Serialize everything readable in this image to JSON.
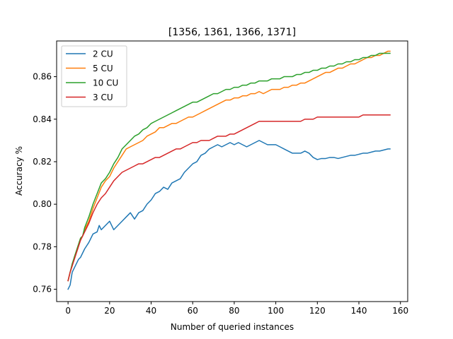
{
  "chart_data": {
    "type": "line",
    "title": "[1356, 1361, 1366, 1371]",
    "xlabel": "Number of queried instances",
    "ylabel": "Accuracy %",
    "xlim": [
      -5.5,
      163.5
    ],
    "ylim": [
      0.7542,
      0.8768
    ],
    "xticks": [
      0,
      20,
      40,
      60,
      80,
      100,
      120,
      140,
      160
    ],
    "xtick_labels": [
      "0",
      "20",
      "40",
      "60",
      "80",
      "100",
      "120",
      "140",
      "160"
    ],
    "yticks": [
      0.76,
      0.78,
      0.8,
      0.82,
      0.84,
      0.86
    ],
    "ytick_labels": [
      "0.76",
      "0.78",
      "0.80",
      "0.82",
      "0.84",
      "0.86"
    ],
    "grid": false,
    "legend_position": "top-left",
    "series": [
      {
        "name": "2 CU",
        "color": "#1f77b4",
        "x": [
          0,
          1,
          2,
          3,
          4,
          5,
          6,
          7,
          8,
          10,
          12,
          14,
          15,
          16,
          18,
          20,
          22,
          24,
          26,
          28,
          30,
          32,
          34,
          36,
          38,
          40,
          42,
          44,
          46,
          48,
          50,
          52,
          54,
          56,
          58,
          60,
          62,
          64,
          66,
          68,
          70,
          72,
          74,
          76,
          78,
          80,
          82,
          84,
          86,
          88,
          90,
          92,
          94,
          96,
          98,
          100,
          102,
          104,
          106,
          108,
          110,
          112,
          114,
          116,
          118,
          120,
          122,
          124,
          126,
          128,
          130,
          132,
          134,
          136,
          138,
          140,
          142,
          144,
          146,
          148,
          150,
          152,
          154,
          155
        ],
        "y": [
          0.76,
          0.762,
          0.768,
          0.77,
          0.772,
          0.774,
          0.775,
          0.777,
          0.779,
          0.782,
          0.786,
          0.787,
          0.79,
          0.788,
          0.79,
          0.792,
          0.788,
          0.79,
          0.792,
          0.794,
          0.796,
          0.793,
          0.796,
          0.797,
          0.8,
          0.802,
          0.805,
          0.806,
          0.808,
          0.807,
          0.81,
          0.811,
          0.812,
          0.815,
          0.817,
          0.819,
          0.82,
          0.823,
          0.824,
          0.826,
          0.827,
          0.828,
          0.827,
          0.828,
          0.829,
          0.828,
          0.829,
          0.828,
          0.827,
          0.828,
          0.829,
          0.83,
          0.829,
          0.828,
          0.828,
          0.828,
          0.827,
          0.826,
          0.825,
          0.824,
          0.824,
          0.824,
          0.825,
          0.824,
          0.822,
          0.821,
          0.8215,
          0.8215,
          0.822,
          0.822,
          0.8215,
          0.822,
          0.8225,
          0.823,
          0.823,
          0.8235,
          0.824,
          0.824,
          0.8245,
          0.825,
          0.825,
          0.8255,
          0.826,
          0.826
        ]
      },
      {
        "name": "5 CU",
        "color": "#ff7f0e",
        "x": [
          0,
          1,
          2,
          3,
          4,
          5,
          6,
          7,
          8,
          10,
          12,
          14,
          16,
          18,
          20,
          22,
          24,
          26,
          28,
          30,
          32,
          34,
          36,
          38,
          40,
          42,
          44,
          46,
          48,
          50,
          52,
          54,
          56,
          58,
          60,
          62,
          64,
          66,
          68,
          70,
          72,
          74,
          76,
          78,
          80,
          82,
          84,
          86,
          88,
          90,
          92,
          94,
          96,
          98,
          100,
          102,
          104,
          106,
          108,
          110,
          112,
          114,
          116,
          118,
          120,
          122,
          124,
          126,
          128,
          130,
          132,
          134,
          136,
          138,
          140,
          142,
          144,
          146,
          148,
          150,
          152,
          154,
          155
        ],
        "y": [
          0.764,
          0.768,
          0.771,
          0.775,
          0.778,
          0.781,
          0.784,
          0.785,
          0.788,
          0.792,
          0.798,
          0.803,
          0.808,
          0.811,
          0.813,
          0.817,
          0.82,
          0.823,
          0.826,
          0.827,
          0.828,
          0.829,
          0.83,
          0.832,
          0.833,
          0.834,
          0.836,
          0.836,
          0.837,
          0.838,
          0.838,
          0.839,
          0.84,
          0.841,
          0.841,
          0.842,
          0.843,
          0.844,
          0.845,
          0.846,
          0.847,
          0.848,
          0.849,
          0.849,
          0.85,
          0.85,
          0.851,
          0.851,
          0.852,
          0.852,
          0.853,
          0.852,
          0.853,
          0.854,
          0.854,
          0.854,
          0.855,
          0.855,
          0.856,
          0.856,
          0.857,
          0.857,
          0.858,
          0.859,
          0.86,
          0.861,
          0.862,
          0.862,
          0.863,
          0.864,
          0.864,
          0.865,
          0.866,
          0.866,
          0.867,
          0.868,
          0.869,
          0.869,
          0.87,
          0.87,
          0.871,
          0.872,
          0.872
        ]
      },
      {
        "name": "10 CU",
        "color": "#2ca02c",
        "x": [
          0,
          1,
          2,
          3,
          4,
          5,
          6,
          7,
          8,
          10,
          12,
          14,
          16,
          18,
          20,
          22,
          24,
          26,
          28,
          30,
          32,
          34,
          36,
          38,
          40,
          42,
          44,
          46,
          48,
          50,
          52,
          54,
          56,
          58,
          60,
          62,
          64,
          66,
          68,
          70,
          72,
          74,
          76,
          78,
          80,
          82,
          84,
          86,
          88,
          90,
          92,
          94,
          96,
          98,
          100,
          102,
          104,
          106,
          108,
          110,
          112,
          114,
          116,
          118,
          120,
          122,
          124,
          126,
          128,
          130,
          132,
          134,
          136,
          138,
          140,
          142,
          144,
          146,
          148,
          150,
          152,
          154,
          155
        ],
        "y": [
          0.764,
          0.768,
          0.772,
          0.775,
          0.778,
          0.781,
          0.784,
          0.785,
          0.789,
          0.794,
          0.8,
          0.805,
          0.81,
          0.812,
          0.815,
          0.819,
          0.822,
          0.826,
          0.828,
          0.83,
          0.832,
          0.833,
          0.835,
          0.836,
          0.838,
          0.839,
          0.84,
          0.841,
          0.842,
          0.843,
          0.844,
          0.845,
          0.846,
          0.847,
          0.848,
          0.848,
          0.849,
          0.85,
          0.851,
          0.852,
          0.852,
          0.853,
          0.854,
          0.854,
          0.855,
          0.855,
          0.856,
          0.856,
          0.857,
          0.857,
          0.858,
          0.858,
          0.858,
          0.859,
          0.859,
          0.859,
          0.86,
          0.86,
          0.86,
          0.861,
          0.861,
          0.862,
          0.862,
          0.863,
          0.863,
          0.864,
          0.864,
          0.865,
          0.865,
          0.866,
          0.866,
          0.867,
          0.867,
          0.868,
          0.868,
          0.869,
          0.869,
          0.87,
          0.87,
          0.871,
          0.871,
          0.871,
          0.871
        ]
      },
      {
        "name": "3 CU",
        "color": "#d62728",
        "x": [
          0,
          1,
          2,
          3,
          4,
          5,
          6,
          7,
          8,
          10,
          12,
          14,
          16,
          18,
          20,
          22,
          24,
          26,
          28,
          30,
          32,
          34,
          36,
          38,
          40,
          42,
          44,
          46,
          48,
          50,
          52,
          54,
          56,
          58,
          60,
          62,
          64,
          66,
          68,
          70,
          72,
          74,
          76,
          78,
          80,
          82,
          84,
          86,
          88,
          90,
          92,
          94,
          96,
          98,
          100,
          102,
          104,
          106,
          108,
          110,
          112,
          114,
          116,
          118,
          120,
          122,
          124,
          126,
          128,
          130,
          132,
          134,
          136,
          138,
          140,
          142,
          144,
          146,
          148,
          150,
          152,
          154,
          155
        ],
        "y": [
          0.764,
          0.768,
          0.771,
          0.774,
          0.777,
          0.78,
          0.783,
          0.785,
          0.787,
          0.791,
          0.796,
          0.8,
          0.803,
          0.805,
          0.808,
          0.811,
          0.813,
          0.815,
          0.816,
          0.817,
          0.818,
          0.819,
          0.819,
          0.82,
          0.821,
          0.822,
          0.822,
          0.823,
          0.824,
          0.825,
          0.826,
          0.826,
          0.827,
          0.828,
          0.829,
          0.829,
          0.83,
          0.83,
          0.83,
          0.831,
          0.832,
          0.832,
          0.832,
          0.833,
          0.833,
          0.834,
          0.835,
          0.836,
          0.837,
          0.838,
          0.839,
          0.839,
          0.839,
          0.839,
          0.839,
          0.839,
          0.839,
          0.839,
          0.839,
          0.839,
          0.839,
          0.84,
          0.84,
          0.84,
          0.841,
          0.841,
          0.841,
          0.841,
          0.841,
          0.841,
          0.841,
          0.841,
          0.841,
          0.841,
          0.841,
          0.842,
          0.842,
          0.842,
          0.842,
          0.842,
          0.842,
          0.842,
          0.842
        ]
      }
    ]
  }
}
